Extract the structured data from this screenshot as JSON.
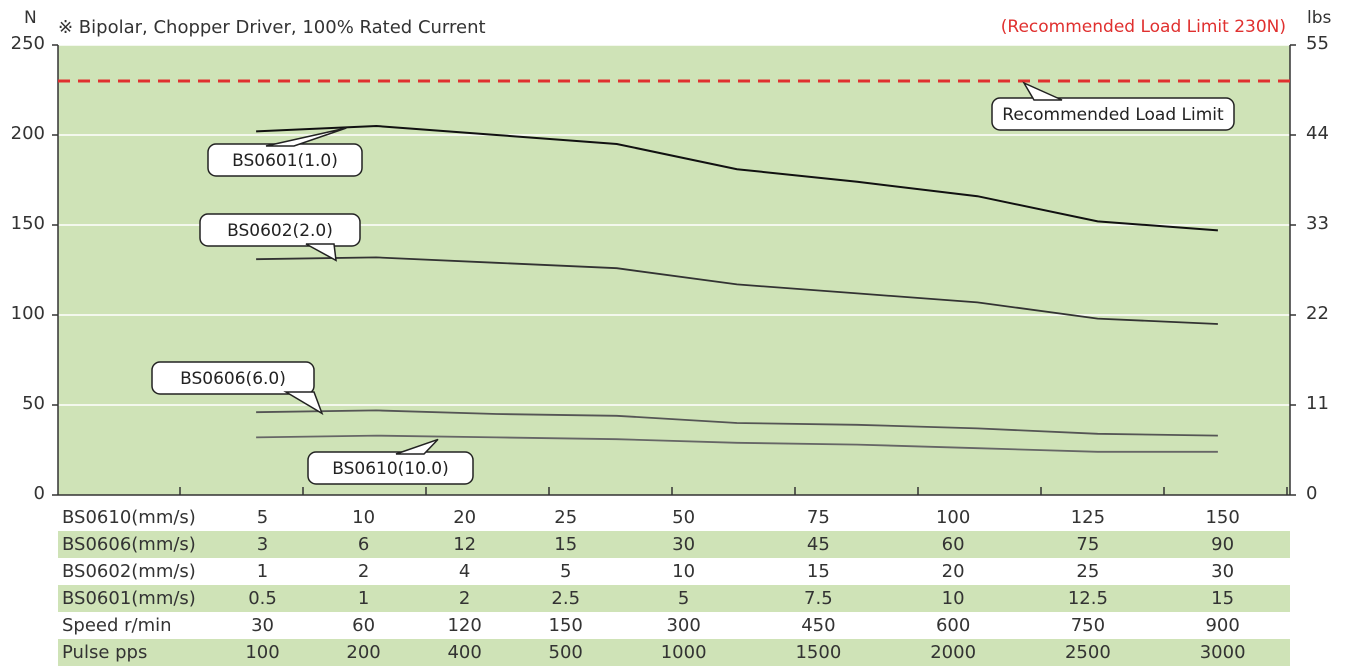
{
  "left_unit": "N",
  "right_unit": "lbs",
  "note": "※ Bipolar, Chopper Driver, 100% Rated Current",
  "limit_note": "(Recommended Load Limit 230N)",
  "colors": {
    "plot_bg": "#cfe3b7",
    "limit_line": "#e0302f",
    "row_shade": "#cfe3b7"
  },
  "chart_data": {
    "type": "line",
    "ylabel": "N",
    "y2label": "lbs",
    "ylim": [
      0,
      250
    ],
    "y2_ticks": [
      {
        "label": "0",
        "n": 0
      },
      {
        "label": "11",
        "n": 50
      },
      {
        "label": "22",
        "n": 100
      },
      {
        "label": "33",
        "n": 150
      },
      {
        "label": "44",
        "n": 200
      },
      {
        "label": "55",
        "n": 250
      }
    ],
    "yticks": [
      "0",
      "50",
      "100",
      "150",
      "200",
      "250"
    ],
    "categories": [
      "30",
      "60",
      "120",
      "150",
      "300",
      "450",
      "600",
      "750",
      "900"
    ],
    "grid": true,
    "reference_line": {
      "value": 230,
      "label": "Recommended Load Limit"
    },
    "series": [
      {
        "name": "BS0601(1.0)",
        "values": [
          202,
          205,
          200,
          195,
          181,
          174,
          166,
          152,
          147
        ]
      },
      {
        "name": "BS0602(2.0)",
        "values": [
          131,
          132,
          129,
          126,
          117,
          112,
          107,
          98,
          95
        ]
      },
      {
        "name": "BS0606(6.0)",
        "values": [
          46,
          47,
          45,
          44,
          40,
          39,
          37,
          34,
          33
        ]
      },
      {
        "name": "BS0610(10.0)",
        "values": [
          32,
          33,
          32,
          31,
          29,
          28,
          26,
          24,
          24
        ]
      }
    ],
    "table": {
      "columns": 9,
      "rows": [
        {
          "label": "BS0610(mm/s)",
          "values": [
            "5",
            "10",
            "20",
            "25",
            "50",
            "75",
            "100",
            "125",
            "150"
          ],
          "shaded": false
        },
        {
          "label": "BS0606(mm/s)",
          "values": [
            "3",
            "6",
            "12",
            "15",
            "30",
            "45",
            "60",
            "75",
            "90"
          ],
          "shaded": true
        },
        {
          "label": "BS0602(mm/s)",
          "values": [
            "1",
            "2",
            "4",
            "5",
            "10",
            "15",
            "20",
            "25",
            "30"
          ],
          "shaded": false
        },
        {
          "label": "BS0601(mm/s)",
          "values": [
            "0.5",
            "1",
            "2",
            "2.5",
            "5",
            "7.5",
            "10",
            "12.5",
            "15"
          ],
          "shaded": true
        },
        {
          "label": "Speed  r/min",
          "values": [
            "30",
            "60",
            "120",
            "150",
            "300",
            "450",
            "600",
            "750",
            "900"
          ],
          "shaded": false
        },
        {
          "label": "Pulse   pps",
          "values": [
            "100",
            "200",
            "400",
            "500",
            "1000",
            "1500",
            "2000",
            "2500",
            "3000"
          ],
          "shaded": true
        }
      ]
    }
  }
}
